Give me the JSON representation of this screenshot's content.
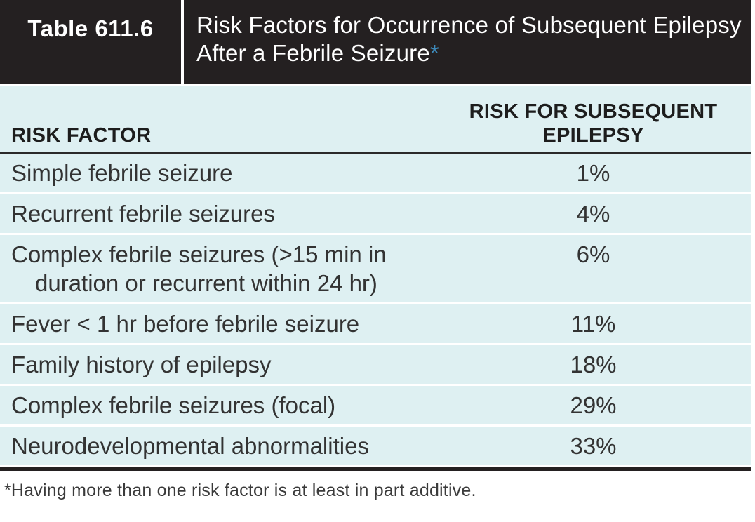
{
  "header": {
    "label": "Table 611.6",
    "title": "Risk Factors for Occurrence of Subsequent Epilepsy After a Febrile Seizure",
    "asterisk": "*"
  },
  "columns": {
    "factor": "RISK FACTOR",
    "risk": "RISK FOR SUBSEQUENT EPILEPSY"
  },
  "rows": [
    {
      "factor": "Simple febrile seizure",
      "risk": "1%"
    },
    {
      "factor": "Recurrent febrile seizures",
      "risk": "4%"
    },
    {
      "factor": "Complex febrile seizures (>15 min in duration or recurrent within 24 hr)",
      "risk": "6%"
    },
    {
      "factor": "Fever < 1 hr before febrile seizure",
      "risk": "11%"
    },
    {
      "factor": "Family history of epilepsy",
      "risk": "18%"
    },
    {
      "factor": "Complex febrile seizures (focal)",
      "risk": "29%"
    },
    {
      "factor": "Neurodevelopmental abnormalities",
      "risk": "33%"
    }
  ],
  "footnote": "*Having more than one risk factor is at least in part additive.",
  "colors": {
    "header_background": "#242021",
    "body_background": "#def0f2",
    "asterisk_blue": "#3d88b8",
    "rule_dark": "#2a2a2a"
  }
}
